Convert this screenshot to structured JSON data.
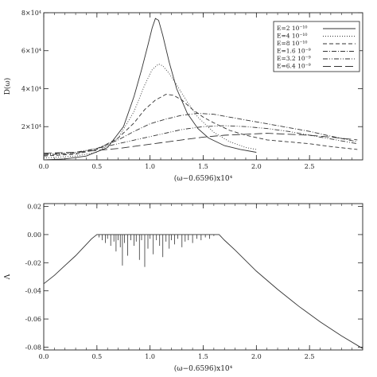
{
  "chart_data": [
    {
      "type": "line",
      "ylabel": "D(ω)",
      "xlabel": "(ω−0.6596)x10⁴",
      "xlim": [
        0,
        3.0
      ],
      "ylim": [
        2500,
        80000
      ],
      "x_ticks": [
        0.0,
        0.5,
        1.0,
        1.5,
        2.0,
        2.5
      ],
      "x_tick_labels": [
        "0.0",
        "0.5",
        "1.0",
        "1.5",
        "2.0",
        "2.5"
      ],
      "y_ticks": [
        20000,
        40000,
        60000,
        80000
      ],
      "y_tick_labels": [
        "2×10⁴",
        "4×10⁴",
        "6×10⁴",
        "8×10⁴"
      ],
      "legend_position": "top-right",
      "series": [
        {
          "name": "E=2 10⁻¹⁰",
          "dash": "solid",
          "x": [
            0.0,
            0.2,
            0.4,
            0.6,
            0.75,
            0.85,
            0.92,
            0.98,
            1.02,
            1.05,
            1.08,
            1.12,
            1.18,
            1.25,
            1.35,
            1.45,
            1.55,
            1.7,
            1.85,
            2.0
          ],
          "y": [
            2500,
            3000,
            4500,
            9000,
            20000,
            36000,
            50000,
            63000,
            72000,
            77000,
            76000,
            68000,
            54000,
            40000,
            27000,
            19000,
            14000,
            10000,
            8000,
            6500
          ]
        },
        {
          "name": "E=4 10⁻¹⁰",
          "dash": "dotted",
          "x": [
            0.0,
            0.3,
            0.5,
            0.7,
            0.85,
            0.95,
            1.02,
            1.08,
            1.12,
            1.18,
            1.25,
            1.35,
            1.45,
            1.6,
            1.75,
            1.9,
            2.0
          ],
          "y": [
            3500,
            4500,
            6500,
            14000,
            28000,
            42000,
            50000,
            53000,
            52000,
            48000,
            42000,
            33000,
            25000,
            17000,
            12000,
            9000,
            8000
          ]
        },
        {
          "name": "E=8 10⁻¹⁰",
          "dash": "dashed",
          "x": [
            0.0,
            0.3,
            0.5,
            0.7,
            0.85,
            0.95,
            1.05,
            1.15,
            1.22,
            1.3,
            1.4,
            1.5,
            1.6,
            1.75,
            1.9,
            2.1,
            2.3,
            2.5,
            2.7,
            2.95
          ],
          "y": [
            4500,
            5500,
            8000,
            14000,
            22000,
            29000,
            34000,
            37000,
            36500,
            34000,
            29000,
            25000,
            22000,
            18000,
            15500,
            13000,
            12000,
            11000,
            9500,
            8000
          ]
        },
        {
          "name": "E=1.6 10⁻⁹",
          "dash": "dashdot",
          "x": [
            0.0,
            0.3,
            0.5,
            0.7,
            0.85,
            1.0,
            1.15,
            1.3,
            1.45,
            1.6,
            1.75,
            1.9,
            2.1,
            2.3,
            2.5,
            2.7,
            2.95
          ],
          "y": [
            5000,
            6000,
            8500,
            13000,
            17500,
            21500,
            24000,
            26000,
            27000,
            26500,
            25000,
            23500,
            21500,
            19500,
            17500,
            15000,
            12000
          ]
        },
        {
          "name": "E=3.2 10⁻⁹",
          "dash": "dashdotdot",
          "x": [
            0.0,
            0.3,
            0.5,
            0.7,
            0.9,
            1.1,
            1.3,
            1.5,
            1.7,
            1.9,
            2.1,
            2.3,
            2.5,
            2.7,
            2.95
          ],
          "y": [
            5500,
            6500,
            8500,
            11000,
            13500,
            16000,
            18500,
            20000,
            20500,
            20000,
            19000,
            17500,
            15500,
            13500,
            11000
          ]
        },
        {
          "name": "E=6.4 10⁻⁹",
          "dash": "longdash",
          "x": [
            0.0,
            0.3,
            0.5,
            0.7,
            0.9,
            1.1,
            1.3,
            1.5,
            1.7,
            1.9,
            2.1,
            2.3,
            2.5,
            2.7,
            2.95
          ],
          "y": [
            6000,
            6500,
            7500,
            8500,
            10000,
            11500,
            13000,
            14500,
            15500,
            16000,
            16500,
            16000,
            15500,
            14500,
            13000
          ]
        }
      ]
    },
    {
      "type": "line",
      "ylabel": "Λ",
      "xlabel": "(ω−0.6596)x10⁴",
      "xlim": [
        0,
        3.0
      ],
      "ylim": [
        -0.082,
        0.022
      ],
      "x_ticks": [
        0.0,
        0.5,
        1.0,
        1.5,
        2.0,
        2.5
      ],
      "x_tick_labels": [
        "0.0",
        "0.5",
        "1.0",
        "1.5",
        "2.0",
        "2.5"
      ],
      "y_ticks": [
        0.02,
        0.0,
        -0.02,
        -0.04,
        -0.06,
        -0.08
      ],
      "y_tick_labels": [
        "0.02",
        "0.00",
        "-0.02",
        "-0.04",
        "-0.06",
        "-0.08"
      ],
      "series": [
        {
          "dash": "solid",
          "x": [
            0.0,
            0.1,
            0.2,
            0.3,
            0.4,
            0.45,
            0.5,
            1.65,
            1.7,
            1.8,
            2.0,
            2.2,
            2.4,
            2.6,
            2.8,
            3.0
          ],
          "y": [
            -0.035,
            -0.029,
            -0.022,
            -0.015,
            -0.007,
            -0.003,
            0.0,
            0.0,
            -0.004,
            -0.011,
            -0.026,
            -0.039,
            -0.051,
            -0.062,
            -0.072,
            -0.081
          ]
        }
      ],
      "spikes": {
        "x": [
          0.52,
          0.55,
          0.58,
          0.6,
          0.63,
          0.66,
          0.68,
          0.7,
          0.72,
          0.74,
          0.76,
          0.79,
          0.82,
          0.85,
          0.87,
          0.9,
          0.92,
          0.95,
          0.98,
          1.0,
          1.03,
          1.06,
          1.09,
          1.12,
          1.15,
          1.18,
          1.2,
          1.23,
          1.26,
          1.3,
          1.33,
          1.36,
          1.4,
          1.44,
          1.48,
          1.52,
          1.56,
          1.6
        ],
        "y": [
          -0.002,
          -0.004,
          -0.006,
          -0.003,
          -0.008,
          -0.005,
          -0.012,
          -0.004,
          -0.009,
          -0.022,
          -0.006,
          -0.015,
          -0.004,
          -0.008,
          -0.005,
          -0.018,
          -0.004,
          -0.023,
          -0.01,
          -0.003,
          -0.014,
          -0.004,
          -0.008,
          -0.016,
          -0.005,
          -0.01,
          -0.004,
          -0.007,
          -0.003,
          -0.009,
          -0.005,
          -0.004,
          -0.006,
          -0.003,
          -0.004,
          -0.002,
          -0.003,
          -0.001
        ]
      }
    }
  ]
}
